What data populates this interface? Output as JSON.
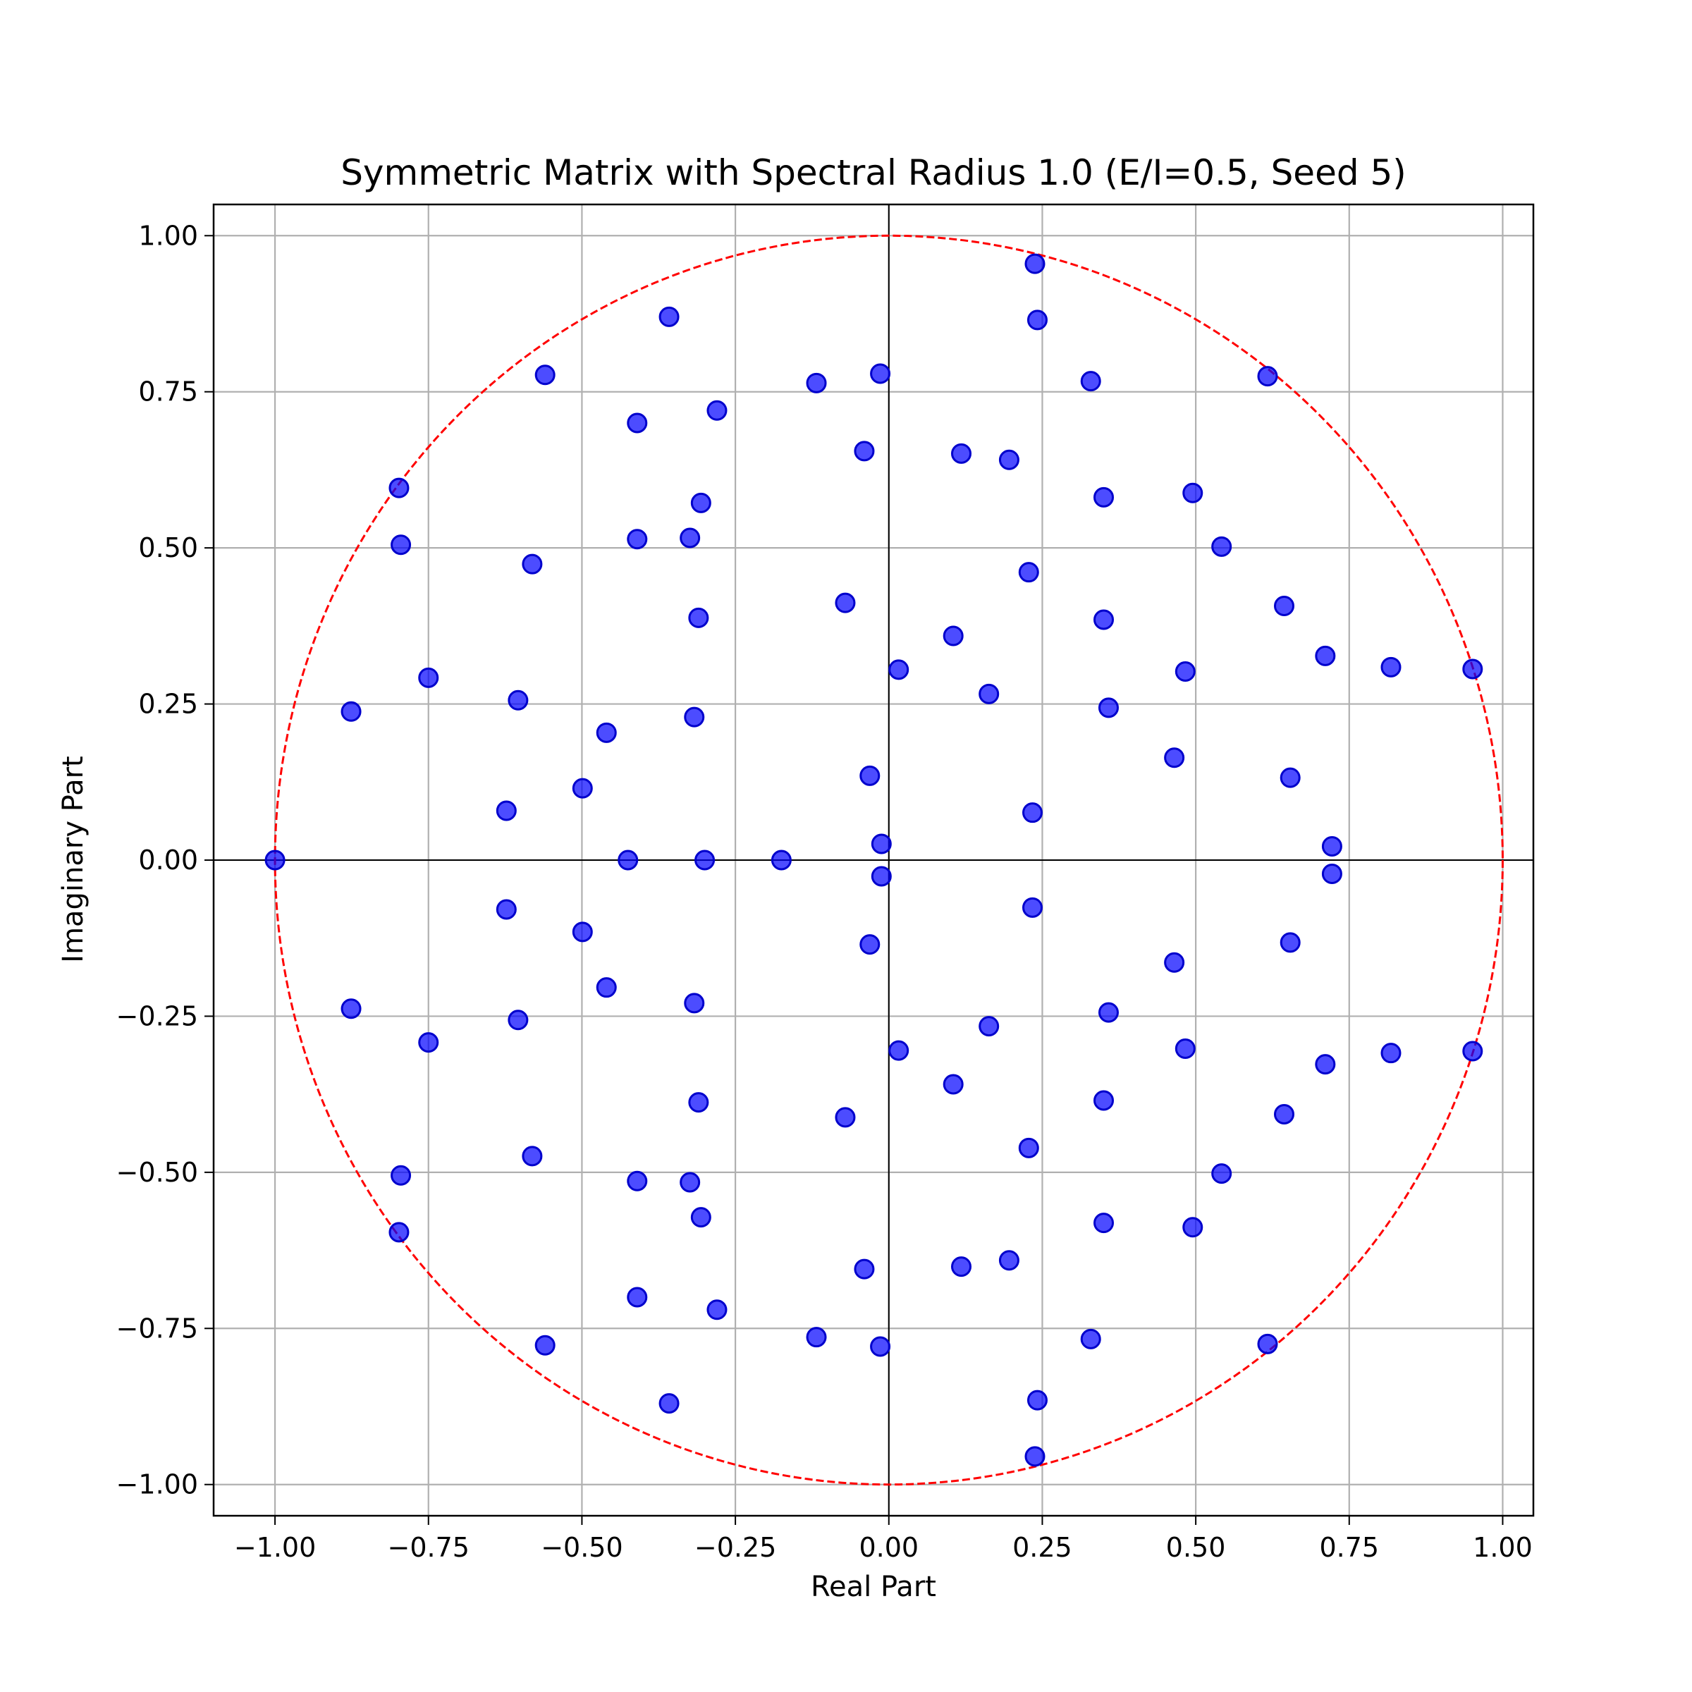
{
  "chart_data": {
    "type": "scatter",
    "title": "Symmetric Matrix with Spectral Radius 1.0 (E/I=0.5, Seed 5)",
    "xlabel": "Real Part",
    "ylabel": "Imaginary Part",
    "xlim": [
      -1.1,
      1.05
    ],
    "ylim": [
      -1.05,
      1.05
    ],
    "xticks": [
      -1.0,
      -0.75,
      -0.5,
      -0.25,
      0.0,
      0.25,
      0.5,
      0.75,
      1.0
    ],
    "yticks": [
      -1.0,
      -0.75,
      -0.5,
      -0.25,
      0.0,
      0.25,
      0.5,
      0.75,
      1.0
    ],
    "xtick_labels": [
      "−1.00",
      "−0.75",
      "−0.50",
      "−0.25",
      "0.00",
      "0.25",
      "0.50",
      "0.75",
      "1.00"
    ],
    "ytick_labels": [
      "−1.00",
      "−0.75",
      "−0.50",
      "−0.25",
      "0.00",
      "0.25",
      "0.50",
      "0.75",
      "1.00"
    ],
    "grid": true,
    "reference_circle": {
      "radius": 1.0,
      "color": "#ff0000",
      "style": "dashed"
    },
    "axis_lines": {
      "color": "#000000"
    },
    "point_color": "#0000ff",
    "point_edge_color": "#0000cc",
    "points": [
      [
        -1.0,
        0.0
      ],
      [
        -0.876,
        0.238
      ],
      [
        -0.876,
        -0.238
      ],
      [
        -0.798,
        0.596
      ],
      [
        -0.798,
        -0.596
      ],
      [
        -0.795,
        0.505
      ],
      [
        -0.795,
        -0.505
      ],
      [
        -0.75,
        0.292
      ],
      [
        -0.75,
        -0.292
      ],
      [
        -0.623,
        0.079
      ],
      [
        -0.623,
        -0.079
      ],
      [
        -0.604,
        0.256
      ],
      [
        -0.604,
        -0.256
      ],
      [
        -0.581,
        0.474
      ],
      [
        -0.581,
        -0.474
      ],
      [
        -0.56,
        0.777
      ],
      [
        -0.56,
        -0.777
      ],
      [
        -0.499,
        0.115
      ],
      [
        -0.499,
        -0.115
      ],
      [
        -0.46,
        0.204
      ],
      [
        -0.46,
        -0.204
      ],
      [
        -0.425,
        0.0
      ],
      [
        -0.41,
        0.7
      ],
      [
        -0.41,
        -0.7
      ],
      [
        -0.41,
        0.514
      ],
      [
        -0.41,
        -0.514
      ],
      [
        -0.358,
        0.87
      ],
      [
        -0.358,
        -0.87
      ],
      [
        -0.324,
        0.516
      ],
      [
        -0.324,
        -0.516
      ],
      [
        -0.317,
        0.229
      ],
      [
        -0.317,
        -0.229
      ],
      [
        -0.31,
        0.388
      ],
      [
        -0.31,
        -0.388
      ],
      [
        -0.306,
        0.572
      ],
      [
        -0.306,
        -0.572
      ],
      [
        -0.3,
        0.0
      ],
      [
        -0.28,
        0.72
      ],
      [
        -0.28,
        -0.72
      ],
      [
        -0.175,
        0.0
      ],
      [
        -0.118,
        0.764
      ],
      [
        -0.118,
        -0.764
      ],
      [
        -0.071,
        0.412
      ],
      [
        -0.071,
        -0.412
      ],
      [
        -0.04,
        0.655
      ],
      [
        -0.04,
        -0.655
      ],
      [
        -0.031,
        0.135
      ],
      [
        -0.031,
        -0.135
      ],
      [
        -0.014,
        0.779
      ],
      [
        -0.014,
        -0.779
      ],
      [
        -0.012,
        0.026
      ],
      [
        -0.012,
        -0.026
      ],
      [
        0.016,
        0.305
      ],
      [
        0.016,
        -0.305
      ],
      [
        0.105,
        0.359
      ],
      [
        0.105,
        -0.359
      ],
      [
        0.118,
        0.651
      ],
      [
        0.118,
        -0.651
      ],
      [
        0.163,
        0.266
      ],
      [
        0.163,
        -0.266
      ],
      [
        0.196,
        0.641
      ],
      [
        0.196,
        -0.641
      ],
      [
        0.228,
        0.461
      ],
      [
        0.228,
        -0.461
      ],
      [
        0.234,
        0.076
      ],
      [
        0.234,
        -0.076
      ],
      [
        0.238,
        0.955
      ],
      [
        0.238,
        -0.955
      ],
      [
        0.242,
        0.865
      ],
      [
        0.242,
        -0.865
      ],
      [
        0.329,
        0.767
      ],
      [
        0.329,
        -0.767
      ],
      [
        0.35,
        0.581
      ],
      [
        0.35,
        -0.581
      ],
      [
        0.35,
        0.385
      ],
      [
        0.35,
        -0.385
      ],
      [
        0.358,
        0.244
      ],
      [
        0.358,
        -0.244
      ],
      [
        0.465,
        0.164
      ],
      [
        0.465,
        -0.164
      ],
      [
        0.483,
        0.302
      ],
      [
        0.483,
        -0.302
      ],
      [
        0.495,
        0.588
      ],
      [
        0.495,
        -0.588
      ],
      [
        0.542,
        0.502
      ],
      [
        0.542,
        -0.502
      ],
      [
        0.617,
        0.775
      ],
      [
        0.617,
        -0.775
      ],
      [
        0.644,
        0.407
      ],
      [
        0.644,
        -0.407
      ],
      [
        0.654,
        0.132
      ],
      [
        0.654,
        -0.132
      ],
      [
        0.711,
        0.327
      ],
      [
        0.711,
        -0.327
      ],
      [
        0.722,
        0.022
      ],
      [
        0.722,
        -0.022
      ],
      [
        0.818,
        0.309
      ],
      [
        0.818,
        -0.309
      ],
      [
        0.951,
        0.306
      ],
      [
        0.951,
        -0.306
      ]
    ]
  }
}
